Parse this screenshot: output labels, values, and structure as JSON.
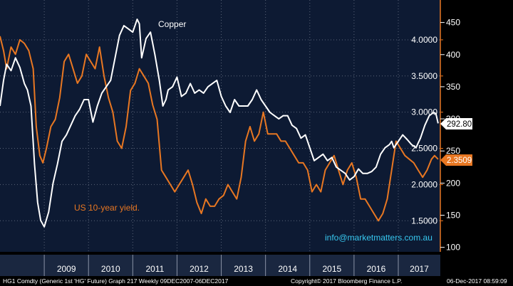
{
  "colors": {
    "background": "#000000",
    "plot_background": "#0d1a33",
    "grid": "#5a6478",
    "copper": "#ffffff",
    "yield": "#e87722",
    "email": "#37c8f0"
  },
  "chart_data": {
    "type": "line",
    "title": "",
    "annotations": {
      "copper_label": "Copper",
      "yield_label": "US 10-year yield.",
      "email": "info@marketmatters.com.au"
    },
    "x_axis": {
      "labels": [
        "2009",
        "2010",
        "2011",
        "2012",
        "2013",
        "2014",
        "2015",
        "2016",
        "2017"
      ],
      "range": [
        2008.0,
        2017.95
      ]
    },
    "y_axis_left": {
      "label": "",
      "ticks": [
        "1.5000",
        "2.0000",
        "2.5000",
        "3.0000",
        "3.5000",
        "4.0000"
      ],
      "range": [
        1.07,
        4.55
      ],
      "color": "#e87722"
    },
    "y_axis_right": {
      "label": "",
      "ticks": [
        "100",
        "150",
        "200",
        "250",
        "300",
        "350",
        "400",
        "450"
      ],
      "range": [
        93,
        485
      ],
      "color": "#ffffff"
    },
    "last_values": {
      "copper": "292.80",
      "yield": "2.3509"
    },
    "series": [
      {
        "key": "copper",
        "axis": "right",
        "color": "#ffffff",
        "x": [
          2008.0,
          2008.08,
          2008.15,
          2008.25,
          2008.35,
          2008.45,
          2008.55,
          2008.62,
          2008.7,
          2008.78,
          2008.85,
          2008.92,
          2009.0,
          2009.1,
          2009.2,
          2009.3,
          2009.4,
          2009.5,
          2009.6,
          2009.7,
          2009.8,
          2009.9,
          2010.0,
          2010.1,
          2010.2,
          2010.3,
          2010.4,
          2010.5,
          2010.6,
          2010.7,
          2010.8,
          2010.9,
          2011.0,
          2011.1,
          2011.15,
          2011.2,
          2011.3,
          2011.4,
          2011.5,
          2011.6,
          2011.68,
          2011.75,
          2011.8,
          2011.9,
          2012.0,
          2012.1,
          2012.2,
          2012.3,
          2012.4,
          2012.5,
          2012.6,
          2012.7,
          2012.8,
          2012.9,
          2013.0,
          2013.1,
          2013.2,
          2013.3,
          2013.4,
          2013.5,
          2013.6,
          2013.7,
          2013.8,
          2013.9,
          2014.0,
          2014.1,
          2014.2,
          2014.3,
          2014.4,
          2014.5,
          2014.6,
          2014.7,
          2014.8,
          2014.9,
          2015.0,
          2015.1,
          2015.2,
          2015.3,
          2015.4,
          2015.5,
          2015.6,
          2015.7,
          2015.8,
          2015.9,
          2016.0,
          2016.1,
          2016.2,
          2016.3,
          2016.4,
          2016.5,
          2016.6,
          2016.7,
          2016.8,
          2016.85,
          2016.9,
          2017.0,
          2017.1,
          2017.2,
          2017.3,
          2017.4,
          2017.5,
          2017.6,
          2017.7,
          2017.8,
          2017.85,
          2017.9
        ],
        "values": [
          320,
          360,
          385,
          375,
          395,
          380,
          355,
          345,
          320,
          230,
          170,
          142,
          132,
          155,
          200,
          230,
          265,
          275,
          290,
          305,
          315,
          330,
          330,
          295,
          320,
          340,
          350,
          360,
          395,
          430,
          445,
          440,
          435,
          455,
          448,
          395,
          425,
          435,
          400,
          360,
          320,
          330,
          345,
          350,
          365,
          335,
          340,
          355,
          340,
          345,
          340,
          350,
          355,
          360,
          335,
          320,
          310,
          330,
          320,
          320,
          320,
          330,
          345,
          330,
          320,
          310,
          305,
          300,
          305,
          305,
          290,
          285,
          270,
          275,
          255,
          235,
          240,
          245,
          235,
          240,
          225,
          220,
          215,
          205,
          210,
          222,
          215,
          215,
          218,
          225,
          245,
          255,
          260,
          265,
          255,
          265,
          275,
          268,
          260,
          255,
          270,
          290,
          305,
          310,
          308,
          293
        ]
      },
      {
        "key": "yield",
        "axis": "left",
        "color": "#e87722",
        "x": [
          2008.0,
          2008.08,
          2008.15,
          2008.25,
          2008.35,
          2008.45,
          2008.55,
          2008.65,
          2008.75,
          2008.82,
          2008.9,
          2008.97,
          2009.05,
          2009.15,
          2009.25,
          2009.35,
          2009.45,
          2009.55,
          2009.65,
          2009.75,
          2009.85,
          2009.95,
          2010.05,
          2010.15,
          2010.25,
          2010.35,
          2010.45,
          2010.55,
          2010.65,
          2010.75,
          2010.85,
          2010.95,
          2011.05,
          2011.15,
          2011.25,
          2011.35,
          2011.45,
          2011.55,
          2011.65,
          2011.75,
          2011.85,
          2011.95,
          2012.05,
          2012.15,
          2012.25,
          2012.35,
          2012.45,
          2012.55,
          2012.65,
          2012.75,
          2012.85,
          2012.95,
          2013.05,
          2013.15,
          2013.25,
          2013.35,
          2013.45,
          2013.55,
          2013.65,
          2013.75,
          2013.85,
          2013.95,
          2014.05,
          2014.15,
          2014.25,
          2014.35,
          2014.45,
          2014.55,
          2014.65,
          2014.75,
          2014.85,
          2014.95,
          2015.05,
          2015.15,
          2015.25,
          2015.35,
          2015.45,
          2015.55,
          2015.65,
          2015.75,
          2015.85,
          2015.95,
          2016.05,
          2016.15,
          2016.25,
          2016.35,
          2016.45,
          2016.55,
          2016.65,
          2016.75,
          2016.85,
          2016.9,
          2016.95,
          2017.05,
          2017.15,
          2017.25,
          2017.35,
          2017.45,
          2017.55,
          2017.65,
          2017.75,
          2017.82,
          2017.9
        ],
        "values": [
          4.05,
          3.85,
          3.6,
          3.9,
          3.8,
          4.0,
          3.95,
          3.85,
          3.6,
          2.8,
          2.4,
          2.3,
          2.5,
          2.8,
          2.9,
          3.2,
          3.7,
          3.8,
          3.6,
          3.4,
          3.5,
          3.8,
          3.7,
          3.6,
          3.9,
          3.5,
          3.2,
          3.0,
          2.6,
          2.5,
          2.8,
          3.3,
          3.4,
          3.6,
          3.5,
          3.4,
          3.1,
          2.9,
          2.2,
          2.1,
          2.0,
          1.9,
          2.0,
          2.1,
          2.2,
          2.0,
          1.75,
          1.6,
          1.8,
          1.7,
          1.7,
          1.8,
          1.85,
          2.0,
          1.9,
          1.8,
          2.1,
          2.6,
          2.8,
          2.6,
          2.7,
          3.0,
          2.7,
          2.7,
          2.7,
          2.6,
          2.6,
          2.5,
          2.4,
          2.3,
          2.3,
          2.2,
          1.9,
          2.0,
          1.9,
          2.2,
          2.3,
          2.4,
          2.2,
          2.0,
          2.2,
          2.3,
          2.1,
          1.8,
          1.8,
          1.7,
          1.6,
          1.5,
          1.6,
          1.8,
          2.2,
          2.4,
          2.6,
          2.5,
          2.4,
          2.35,
          2.3,
          2.2,
          2.1,
          2.2,
          2.35,
          2.4,
          2.35
        ]
      }
    ]
  },
  "footer": {
    "left": "HG1 Comdty (Generic 1st 'HG' Future) Graph 217  Weekly 09DEC2007-06DEC2017",
    "center": "Copyright© 2017 Bloomberg Finance L.P.",
    "right": "06-Dec-2017 08:59:09"
  }
}
